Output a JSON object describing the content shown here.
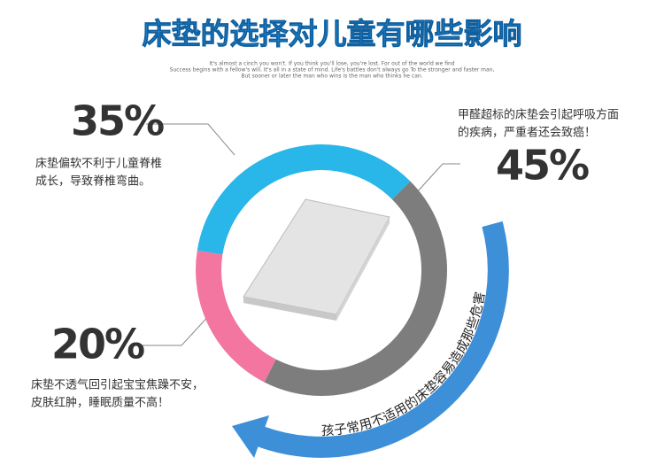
{
  "chart_data": {
    "type": "donut",
    "title": "床垫的选择对儿童有哪些影响",
    "subtitle": [
      "It's almost a cinch you won't. If you think you'll lose, you're lost. For out of the world we find",
      "Success begins with a fellow's will. It's all in a state of mind. Life's battles don't always go To the stronger and faster man,",
      "But sooner or later the man who wins is the man who thinks he can."
    ],
    "values": [
      35,
      45,
      20
    ],
    "value_labels": [
      "35%",
      "45%",
      "20%"
    ],
    "colors": [
      "#29b6e8",
      "#7d7d7d",
      "#f2769f"
    ],
    "descriptions": [
      [
        "床垫偏软不利于儿童脊椎",
        "成长，导致脊椎弯曲。"
      ],
      [
        "甲醛超标的床垫会引起呼吸方面",
        "的疾病，严重者还会致癌！"
      ],
      [
        "床垫不透气回引起宝宝焦躁不安，",
        "皮肤红肿，睡眠质量不高！"
      ]
    ],
    "annotation": "孩子常用不适用的床垫容易造成那些危害"
  }
}
